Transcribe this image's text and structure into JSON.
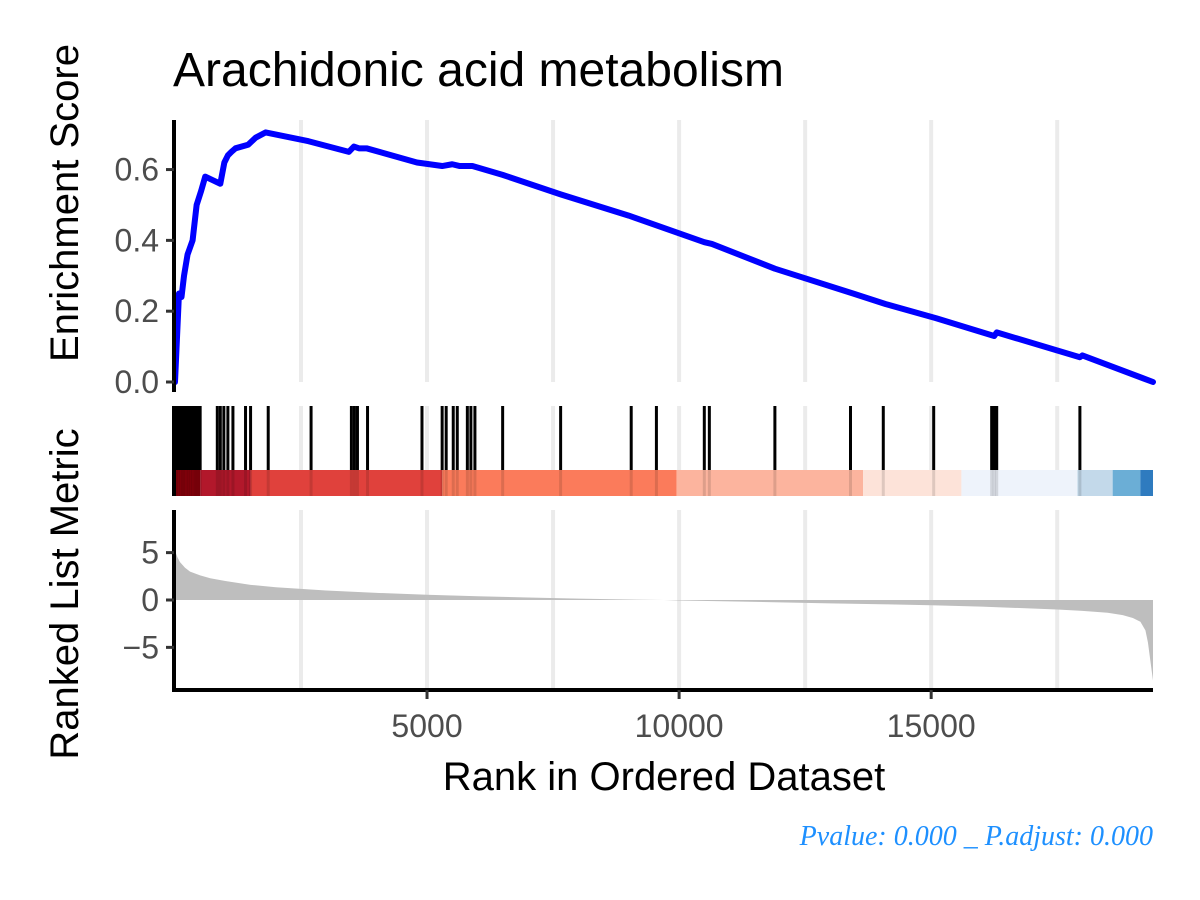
{
  "chart_data": {
    "type": "line",
    "title": "Arachidonic acid metabolism",
    "xlabel": "Rank in Ordered Dataset",
    "ylabel_top": "Enrichment Score",
    "ylabel_bottom": "Ranked List Metric",
    "xlim": [
      1,
      19400
    ],
    "x_ticks": [
      5000,
      10000,
      15000
    ],
    "x_tick_labels": [
      "5000",
      "10000",
      "15000"
    ],
    "grid": "vertical",
    "es_panel": {
      "ylim": [
        0,
        0.74
      ],
      "y_ticks": [
        0.0,
        0.2,
        0.4,
        0.6
      ],
      "y_tick_labels": [
        "0.0",
        "0.2",
        "0.4",
        "0.6"
      ],
      "line_color": "#0000ff",
      "x": [
        1,
        80,
        130,
        180,
        250,
        350,
        430,
        520,
        600,
        750,
        900,
        980,
        1050,
        1120,
        1200,
        1450,
        1600,
        1800,
        2650,
        3450,
        3550,
        3650,
        3800,
        4800,
        5300,
        5500,
        5650,
        5900,
        6500,
        7650,
        9000,
        10500,
        10650,
        11900,
        13450,
        14100,
        15100,
        16250,
        16300,
        17950,
        18000,
        19400
      ],
      "y": [
        0.0,
        0.25,
        0.24,
        0.3,
        0.36,
        0.4,
        0.5,
        0.54,
        0.58,
        0.57,
        0.56,
        0.62,
        0.64,
        0.65,
        0.66,
        0.67,
        0.69,
        0.705,
        0.68,
        0.65,
        0.665,
        0.66,
        0.66,
        0.62,
        0.61,
        0.615,
        0.61,
        0.61,
        0.585,
        0.53,
        0.47,
        0.395,
        0.39,
        0.32,
        0.25,
        0.22,
        0.18,
        0.13,
        0.14,
        0.07,
        0.075,
        0.0
      ]
    },
    "gene_hits": [
      10,
      40,
      70,
      110,
      140,
      170,
      200,
      240,
      270,
      310,
      340,
      380,
      410,
      440,
      470,
      500,
      840,
      900,
      970,
      1050,
      1150,
      1400,
      1500,
      1850,
      2700,
      3500,
      3560,
      3620,
      3820,
      4900,
      5300,
      5380,
      5520,
      5600,
      5800,
      5870,
      5950,
      6500,
      7650,
      9050,
      9550,
      10500,
      10600,
      11900,
      13400,
      14050,
      15050,
      16200,
      16250,
      16300,
      17950
    ],
    "color_bar": {
      "segments": [
        {
          "from": 1,
          "to": 500,
          "color": "#99000d"
        },
        {
          "from": 500,
          "to": 1500,
          "color": "#b2182b"
        },
        {
          "from": 1500,
          "to": 5300,
          "color": "#e0413c"
        },
        {
          "from": 5300,
          "to": 9950,
          "color": "#fb7b5b"
        },
        {
          "from": 9950,
          "to": 13650,
          "color": "#fcb49e"
        },
        {
          "from": 13650,
          "to": 15600,
          "color": "#fde3d9"
        },
        {
          "from": 15600,
          "to": 17900,
          "color": "#eef3fb"
        },
        {
          "from": 17900,
          "to": 18600,
          "color": "#c3d9ea"
        },
        {
          "from": 18600,
          "to": 19150,
          "color": "#6baed6"
        },
        {
          "from": 19150,
          "to": 19400,
          "color": "#2f7bbf"
        }
      ]
    },
    "metric_panel": {
      "ylim": [
        -9.5,
        9.5
      ],
      "y_ticks": [
        5,
        0,
        -5
      ],
      "y_tick_labels": [
        "5",
        "0",
        "−5"
      ],
      "fill_color": "#bebebe",
      "x": [
        1,
        50,
        100,
        200,
        300,
        500,
        700,
        1000,
        1500,
        2000,
        3000,
        4000,
        5000,
        6000,
        7000,
        8000,
        9000,
        9700,
        10000,
        11000,
        12000,
        13000,
        14000,
        15000,
        16000,
        17000,
        17500,
        18000,
        18500,
        18800,
        19000,
        19150,
        19250,
        19300,
        19350,
        19400
      ],
      "values": [
        5.2,
        4.5,
        4.0,
        3.4,
        3.0,
        2.6,
        2.3,
        2.0,
        1.6,
        1.35,
        1.0,
        0.75,
        0.55,
        0.4,
        0.27,
        0.15,
        0.05,
        0.0,
        -0.05,
        -0.15,
        -0.25,
        -0.35,
        -0.45,
        -0.55,
        -0.7,
        -0.9,
        -1.0,
        -1.15,
        -1.35,
        -1.6,
        -1.9,
        -2.3,
        -3.2,
        -4.5,
        -6.5,
        -8.5
      ]
    },
    "annotation": {
      "text": "Pvalue:  0.000 _ P.adjust: 0.000",
      "color": "#1e90ff"
    }
  }
}
